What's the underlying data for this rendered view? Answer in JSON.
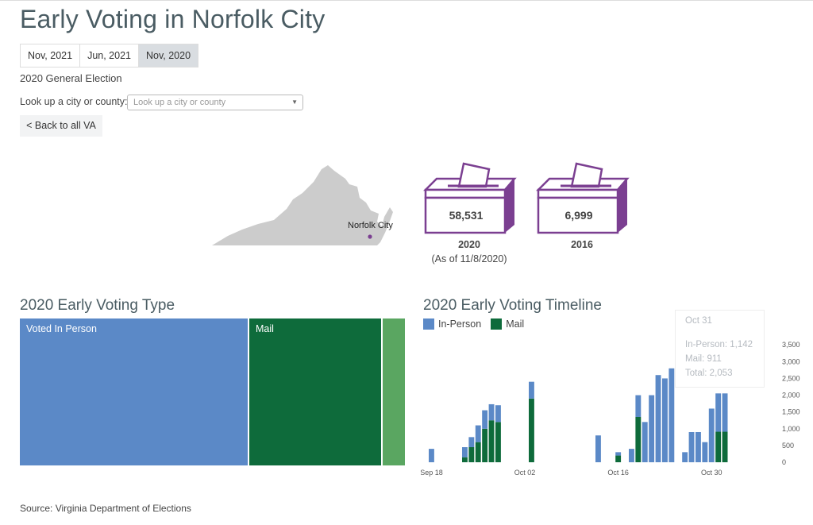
{
  "page": {
    "title": "Early Voting in Norfolk City"
  },
  "tabs": [
    {
      "label": "Nov, 2021",
      "active": false
    },
    {
      "label": "Jun, 2021",
      "active": false
    },
    {
      "label": "Nov, 2020",
      "active": true
    }
  ],
  "subtitle": "2020 General Election",
  "lookup": {
    "label": "Look up a city or county:",
    "placeholder": "Look up a city or county"
  },
  "back_button": "< Back to all VA",
  "map": {
    "locality_label": "Norfolk City",
    "fill": "#cccccc",
    "marker_color": "#7b3f91"
  },
  "ballot_boxes": [
    {
      "value": "58,531",
      "year": "2020",
      "note": "(As of 11/8/2020)"
    },
    {
      "value": "6,999",
      "year": "2016",
      "note": ""
    }
  ],
  "colors": {
    "accent": "#7b3f91",
    "in_person": "#5b89c7",
    "mail": "#0e6b3b",
    "mail_light": "#5aa661"
  },
  "type_chart": {
    "title": "2020 Early Voting Type",
    "cells": [
      {
        "label": "Voted In Person",
        "share": 0.595,
        "color": "#5b89c7"
      },
      {
        "label": "Mail",
        "share": 0.347,
        "color": "#0e6b3b"
      },
      {
        "label": "",
        "share": 0.058,
        "color": "#5aa661"
      }
    ]
  },
  "timeline": {
    "title": "2020 Early Voting Timeline",
    "legend": [
      "In-Person",
      "Mail"
    ],
    "tooltip": {
      "date": "Oct 31",
      "in_person": "In-Person: 1,142",
      "mail": "Mail: 911",
      "total": "Total: 2,053"
    }
  },
  "chart_data": {
    "type": "bar",
    "stacked": true,
    "title": "2020 Early Voting Timeline",
    "x_ticks": [
      "Sep 18",
      "Oct 02",
      "Oct 16",
      "Oct 30"
    ],
    "y_ticks": [
      "0",
      "500",
      "1,000",
      "1,500",
      "2,000",
      "2,500",
      "3,000",
      "3,500"
    ],
    "ylim": [
      0,
      3600
    ],
    "x": [
      "Sep 18",
      "Sep 19",
      "Sep 20",
      "Sep 21",
      "Sep 22",
      "Sep 23",
      "Sep 24",
      "Sep 25",
      "Sep 26",
      "Sep 27",
      "Sep 28",
      "Sep 29",
      "Sep 30",
      "Oct 01",
      "Oct 02",
      "Oct 03",
      "Oct 04",
      "Oct 05",
      "Oct 06",
      "Oct 07",
      "Oct 08",
      "Oct 09",
      "Oct 10",
      "Oct 11",
      "Oct 12",
      "Oct 13",
      "Oct 14",
      "Oct 15",
      "Oct 16",
      "Oct 17",
      "Oct 18",
      "Oct 19",
      "Oct 20",
      "Oct 21",
      "Oct 22",
      "Oct 23",
      "Oct 24",
      "Oct 25",
      "Oct 26",
      "Oct 27",
      "Oct 28",
      "Oct 29",
      "Oct 30",
      "Oct 31",
      "Nov 01",
      "Nov 02",
      "Nov 03",
      "Nov 04",
      "Nov 05",
      "Nov 06"
    ],
    "series": [
      {
        "name": "In-Person",
        "values": [
          400,
          0,
          0,
          0,
          0,
          300,
          300,
          500,
          550,
          480,
          500,
          0,
          0,
          0,
          0,
          500,
          0,
          0,
          0,
          0,
          0,
          0,
          0,
          0,
          0,
          800,
          0,
          0,
          100,
          0,
          400,
          650,
          1200,
          2000,
          2600,
          2500,
          2800,
          0,
          300,
          900,
          900,
          600,
          1600,
          1142,
          1142,
          0,
          0,
          0,
          0,
          0
        ]
      },
      {
        "name": "Mail",
        "values": [
          0,
          0,
          0,
          0,
          0,
          150,
          450,
          600,
          1000,
          1250,
          1200,
          0,
          0,
          0,
          0,
          1900,
          0,
          0,
          0,
          0,
          0,
          0,
          0,
          0,
          0,
          0,
          0,
          0,
          200,
          0,
          0,
          1350,
          0,
          0,
          0,
          0,
          0,
          0,
          0,
          0,
          0,
          0,
          0,
          911,
          911,
          0,
          0,
          0,
          0,
          0
        ]
      }
    ]
  },
  "source": "Source: Virginia Department of Elections"
}
